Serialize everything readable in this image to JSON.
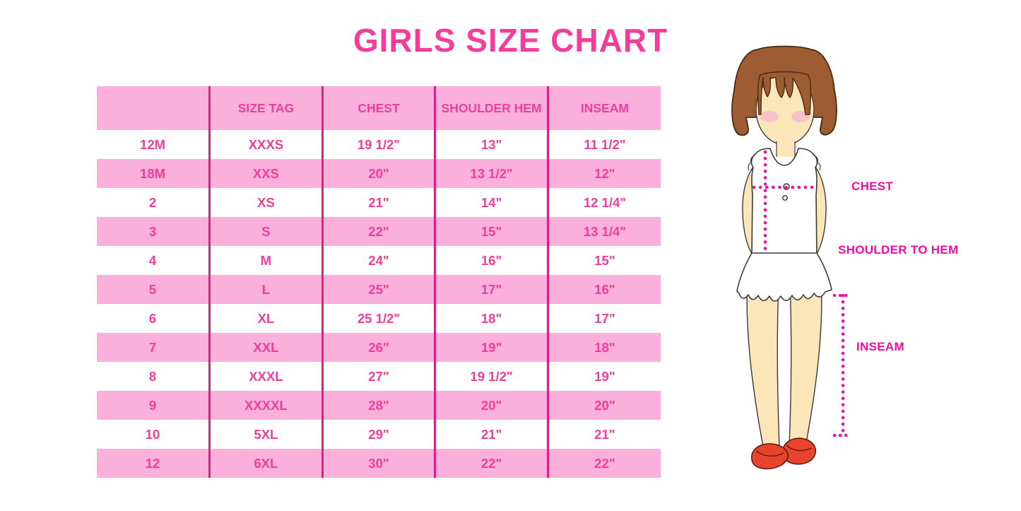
{
  "title": "GIRLS SIZE CHART",
  "table": {
    "headers": [
      "",
      "SIZE TAG",
      "CHEST",
      "SHOULDER HEM",
      "INSEAM"
    ],
    "rows": [
      [
        "12M",
        "XXXS",
        "19 1/2\"",
        "13\"",
        "11 1/2\""
      ],
      [
        "18M",
        "XXS",
        "20\"",
        "13 1/2\"",
        "12\""
      ],
      [
        "2",
        "XS",
        "21\"",
        "14\"",
        "12 1/4\""
      ],
      [
        "3",
        "S",
        "22\"",
        "15\"",
        "13 1/4\""
      ],
      [
        "4",
        "M",
        "24\"",
        "16\"",
        "15\""
      ],
      [
        "5",
        "L",
        "25\"",
        "17\"",
        "16\""
      ],
      [
        "6",
        "XL",
        "25 1/2\"",
        "18\"",
        "17\""
      ],
      [
        "7",
        "XXL",
        "26\"",
        "19\"",
        "18\""
      ],
      [
        "8",
        "XXXL",
        "27\"",
        "19 1/2\"",
        "19\""
      ],
      [
        "9",
        "XXXXL",
        "28\"",
        "20\"",
        "20\""
      ],
      [
        "10",
        "5XL",
        "29\"",
        "21\"",
        "21\""
      ],
      [
        "12",
        "6XL",
        "30\"",
        "22\"",
        "22\""
      ]
    ]
  },
  "figure": {
    "labels": {
      "chest": "CHEST",
      "shoulder_to_hem": "SHOULDER TO HEM",
      "inseam": "INSEAM"
    }
  },
  "colors": {
    "title_pink": "#F23E9A",
    "table_text_pink": "#EE3E9B",
    "row_band_pink": "#FAB0DA",
    "divider_pink": "#E01D80",
    "measure_pink": "#F40DA0",
    "hair_brown": "#9D5C31",
    "skin": "#FBE5B9",
    "blush_pink": "#F5BCC9",
    "shoe_red": "#E8432C"
  }
}
